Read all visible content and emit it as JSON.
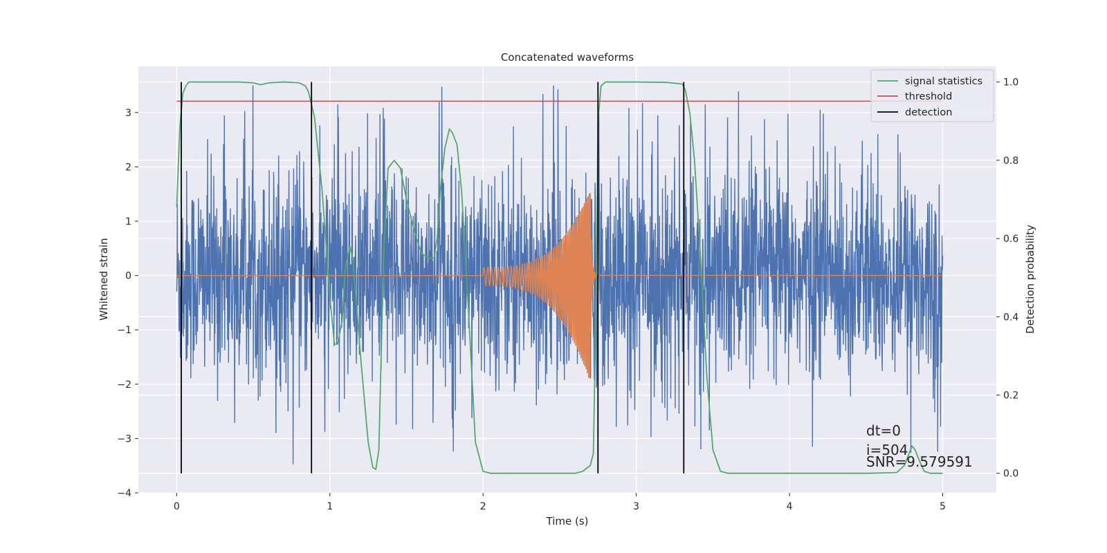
{
  "chart_data": {
    "type": "line",
    "title": "Concatenated waveforms",
    "xlabel": "Time (s)",
    "ylabel": "Whitened strain",
    "y2label": "Detection probability",
    "xlim": [
      -0.25,
      5.35
    ],
    "ylim": [
      -4,
      3.85
    ],
    "y2lim": [
      -0.05,
      1.04
    ],
    "x_ticks": [
      0,
      1,
      2,
      3,
      4,
      5
    ],
    "y_ticks": [
      -4,
      -3,
      -2,
      -1,
      0,
      1,
      2,
      3
    ],
    "y2_ticks": [
      0.0,
      0.2,
      0.4,
      0.6,
      0.8,
      1.0
    ],
    "x_tick_labels": [
      "0",
      "1",
      "2",
      "3",
      "4",
      "5"
    ],
    "y_tick_labels": [
      "−4",
      "−3",
      "−2",
      "−1",
      "0",
      "1",
      "2",
      "3"
    ],
    "y2_tick_labels": [
      "0.0",
      "0.2",
      "0.4",
      "0.6",
      "0.8",
      "1.0"
    ],
    "grid": true,
    "legend_position": "top-right",
    "legend": [
      "signal statistics",
      "threshold",
      "detection"
    ],
    "colors": {
      "strain": "#4c72b0",
      "template": "#dd8452",
      "signal_statistics": "#55a868",
      "threshold": "#c44e52",
      "detection": "#000000",
      "background": "#eaeaf2",
      "grid": "#ffffff"
    },
    "series": [
      {
        "name": "signal statistics",
        "axis": "right",
        "x": [
          0.0,
          0.02,
          0.04,
          0.06,
          0.08,
          0.1,
          0.2,
          0.4,
          0.5,
          0.55,
          0.6,
          0.7,
          0.8,
          0.84,
          0.86,
          0.9,
          0.95,
          1.0,
          1.03,
          1.05,
          1.08,
          1.1,
          1.13,
          1.15,
          1.2,
          1.25,
          1.28,
          1.3,
          1.32,
          1.35,
          1.38,
          1.42,
          1.46,
          1.5,
          1.55,
          1.6,
          1.65,
          1.68,
          1.7,
          1.72,
          1.75,
          1.78,
          1.8,
          1.83,
          1.86,
          1.9,
          1.95,
          2.0,
          2.05,
          2.1,
          2.2,
          2.4,
          2.6,
          2.65,
          2.7,
          2.72,
          2.74,
          2.75,
          2.77,
          2.8,
          2.9,
          3.0,
          3.2,
          3.3,
          3.32,
          3.35,
          3.38,
          3.42,
          3.46,
          3.5,
          3.55,
          3.6,
          3.8,
          4.0,
          4.5,
          4.7,
          4.75,
          4.78,
          4.8,
          4.82,
          4.85,
          4.88,
          4.92,
          5.0
        ],
        "values": [
          0.68,
          0.88,
          0.97,
          0.99,
          1.0,
          1.0,
          1.0,
          1.0,
          0.998,
          0.993,
          0.998,
          1.0,
          0.998,
          0.99,
          0.975,
          0.91,
          0.72,
          0.45,
          0.33,
          0.33,
          0.39,
          0.52,
          0.58,
          0.55,
          0.3,
          0.08,
          0.015,
          0.01,
          0.06,
          0.55,
          0.78,
          0.8,
          0.78,
          0.7,
          0.62,
          0.56,
          0.55,
          0.55,
          0.6,
          0.72,
          0.83,
          0.88,
          0.87,
          0.84,
          0.72,
          0.45,
          0.08,
          0.005,
          0.0,
          0.0,
          0.0,
          0.0,
          0.0,
          0.005,
          0.02,
          0.05,
          0.5,
          0.9,
          0.99,
          1.0,
          1.0,
          1.0,
          0.999,
          0.995,
          0.98,
          0.92,
          0.8,
          0.55,
          0.25,
          0.06,
          0.005,
          0.0,
          0.0,
          0.0,
          0.0,
          0.002,
          0.02,
          0.05,
          0.07,
          0.06,
          0.03,
          0.005,
          0.0,
          0.0
        ]
      },
      {
        "name": "threshold",
        "axis": "right",
        "x": [
          0,
          5
        ],
        "values": [
          0.951,
          0.951
        ]
      },
      {
        "name": "detection",
        "axis": "right",
        "vlines": [
          0.03,
          0.88,
          2.75,
          3.31
        ],
        "ymin": 0.0,
        "ymax": 1.0
      }
    ],
    "strain_noise": {
      "axis": "left",
      "x_range": [
        0,
        5
      ],
      "typical_range": [
        -2,
        2
      ],
      "peak_max": 3.5,
      "peak_min": -3.6
    },
    "template_chirp": {
      "axis": "left",
      "x_range": [
        2.0,
        2.75
      ],
      "start_amplitude": 0.15,
      "peak_amplitude_high": 1.57,
      "peak_amplitude_low": -1.97,
      "peak_time": 2.7
    },
    "annotations": [
      "dt=0",
      "i=504",
      "SNR=9.579591"
    ]
  }
}
